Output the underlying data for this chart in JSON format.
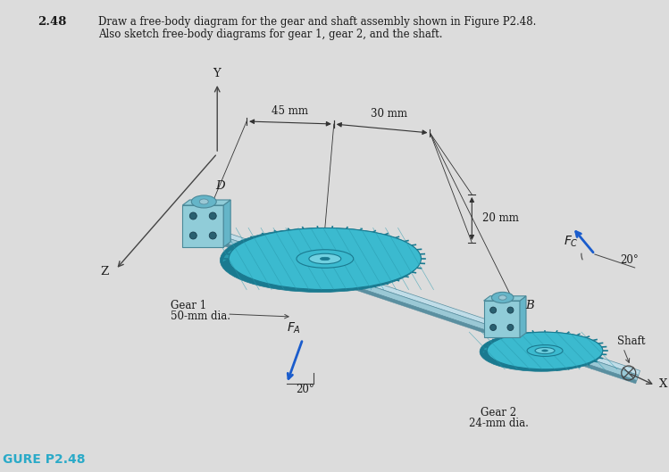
{
  "background_color": "#dcdcdc",
  "title_number": "2.48",
  "title_text_line1": "Draw a free-body diagram for the gear and shaft assembly shown in Figure P2.48.",
  "title_text_line2": "Also sketch free-body diagrams for gear 1, gear 2, and the shaft.",
  "figure_label": "GURE P2.48",
  "figure_label_color": "#2aaac8",
  "dim_45mm": "45 mm",
  "dim_30mm": "30 mm",
  "dim_20mm": "20 mm",
  "label_D": "D",
  "label_Y": "Y",
  "label_Z": "Z",
  "label_B": "B",
  "label_FA_text": "$F_A$",
  "label_FC_text": "$F_C$",
  "label_20deg": "20°",
  "gear1_label": "Gear 1",
  "gear1_dia": "50-mm dia.",
  "gear2_label": "Gear 2",
  "gear2_dia": "24-mm dia.",
  "shaft_label": "Shaft",
  "gear_color_main": "#3bbacf",
  "gear_color_dark": "#1a7a90",
  "gear_color_light": "#70d0e0",
  "gear_color_teeth": "#2899ad",
  "shaft_color_main": "#9ac8d5",
  "shaft_color_dark": "#5a8fa0",
  "shaft_color_light": "#c0dde8",
  "bearing_color_main": "#65b5c8",
  "bearing_color_light": "#90ccd8",
  "bearing_color_dark": "#4a8898",
  "text_color": "#1a1a1a",
  "line_color": "#444444",
  "dim_line_color": "#333333",
  "force_arrow_color": "#1a5ccc"
}
